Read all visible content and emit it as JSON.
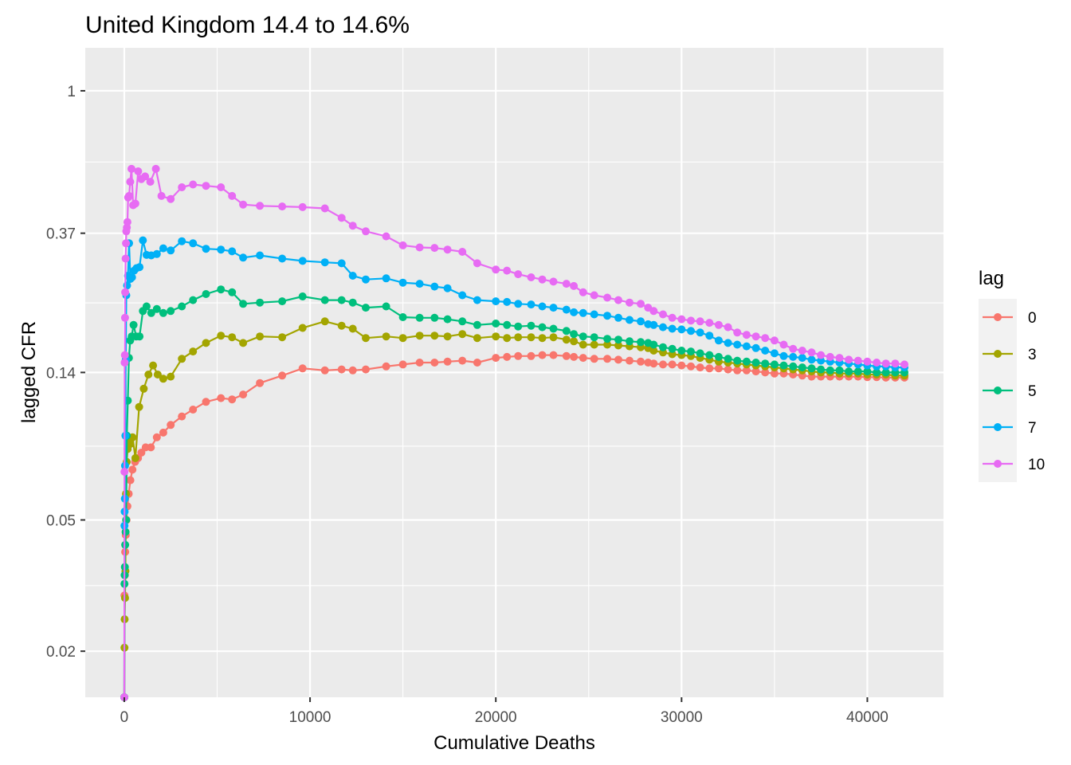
{
  "chart_data": {
    "type": "line",
    "title": "United Kingdom 14.4 to 14.6%",
    "xlabel": "Cumulative Deaths",
    "ylabel": "lagged CFR",
    "y_scale": "log",
    "xlim": [
      -2100,
      44100
    ],
    "ylim": [
      0.0145,
      1.35
    ],
    "x_ticks": [
      0,
      10000,
      20000,
      30000,
      40000
    ],
    "x_tick_labels": [
      "0",
      "10000",
      "20000",
      "30000",
      "40000"
    ],
    "y_ticks": [
      1,
      0.37,
      0.14,
      0.05,
      0.02
    ],
    "y_tick_labels": [
      "1",
      "0.37",
      "0.14",
      "0.05",
      "0.02"
    ],
    "grid": true,
    "legend": {
      "title": "lag",
      "position": "right"
    },
    "series": [
      {
        "name": "0",
        "color": "#F8766D",
        "x": [
          0,
          10,
          30,
          50,
          80,
          120,
          170,
          240,
          330,
          440,
          580,
          740,
          920,
          1150,
          1430,
          1750,
          2100,
          2500,
          3100,
          3700,
          4400,
          5200,
          5800,
          6400,
          7300,
          8500,
          9600,
          10800,
          11700,
          12300,
          13000,
          14100,
          15000,
          15900,
          16700,
          17400,
          18200,
          19000,
          20000,
          20600,
          21200,
          21900,
          22500,
          23100,
          23800,
          24200,
          24700,
          25300,
          26000,
          26600,
          27200,
          27800,
          28200,
          28500,
          29000,
          29500,
          30000,
          30500,
          31000,
          31500,
          32000,
          32500,
          33000,
          33500,
          34000,
          34500,
          35000,
          35500,
          36000,
          36500,
          37000,
          37500,
          38000,
          38500,
          39000,
          39500,
          40000,
          40500,
          41000,
          41500,
          42000
        ],
        "values": [
          0.0145,
          0.0295,
          0.034,
          0.04,
          0.045,
          0.05,
          0.055,
          0.06,
          0.066,
          0.071,
          0.075,
          0.077,
          0.08,
          0.083,
          0.083,
          0.089,
          0.092,
          0.097,
          0.103,
          0.108,
          0.114,
          0.117,
          0.116,
          0.12,
          0.13,
          0.137,
          0.144,
          0.142,
          0.143,
          0.142,
          0.143,
          0.146,
          0.148,
          0.15,
          0.15,
          0.151,
          0.152,
          0.15,
          0.155,
          0.156,
          0.157,
          0.157,
          0.158,
          0.158,
          0.157,
          0.156,
          0.155,
          0.154,
          0.154,
          0.153,
          0.152,
          0.151,
          0.15,
          0.149,
          0.148,
          0.148,
          0.147,
          0.146,
          0.145,
          0.144,
          0.144,
          0.143,
          0.142,
          0.142,
          0.141,
          0.14,
          0.139,
          0.139,
          0.138,
          0.137,
          0.136,
          0.136,
          0.136,
          0.136,
          0.136,
          0.136,
          0.1355,
          0.1355,
          0.135,
          0.135,
          0.135
        ]
      },
      {
        "name": "3",
        "color": "#A3A500",
        "x": [
          0,
          10,
          20,
          40,
          60,
          90,
          130,
          180,
          250,
          330,
          450,
          600,
          800,
          1050,
          1300,
          1550,
          1800,
          2100,
          2500,
          3100,
          3700,
          4400,
          5200,
          5800,
          6400,
          7300,
          8500,
          9600,
          10800,
          11700,
          12300,
          13000,
          14100,
          15000,
          15900,
          16700,
          17400,
          18200,
          19000,
          20000,
          20600,
          21200,
          21900,
          22500,
          23100,
          23800,
          24200,
          24700,
          25300,
          26000,
          26600,
          27200,
          27800,
          28200,
          28500,
          29000,
          29500,
          30000,
          30500,
          31000,
          31500,
          32000,
          32500,
          33000,
          33500,
          34000,
          34500,
          35000,
          35500,
          36000,
          36500,
          37000,
          37500,
          38000,
          38500,
          39000,
          39500,
          40000,
          40500,
          41000,
          41500,
          42000
        ],
        "values": [
          0.0145,
          0.0205,
          0.025,
          0.029,
          0.035,
          0.06,
          0.075,
          0.082,
          0.086,
          0.085,
          0.089,
          0.077,
          0.11,
          0.125,
          0.138,
          0.147,
          0.138,
          0.134,
          0.136,
          0.154,
          0.162,
          0.172,
          0.181,
          0.179,
          0.172,
          0.18,
          0.179,
          0.191,
          0.2,
          0.194,
          0.19,
          0.178,
          0.18,
          0.178,
          0.181,
          0.181,
          0.18,
          0.183,
          0.178,
          0.18,
          0.178,
          0.179,
          0.179,
          0.178,
          0.179,
          0.176,
          0.174,
          0.17,
          0.17,
          0.17,
          0.169,
          0.168,
          0.167,
          0.166,
          0.163,
          0.161,
          0.159,
          0.158,
          0.157,
          0.155,
          0.153,
          0.151,
          0.15,
          0.149,
          0.148,
          0.147,
          0.146,
          0.145,
          0.144,
          0.143,
          0.142,
          0.141,
          0.14,
          0.14,
          0.139,
          0.139,
          0.139,
          0.138,
          0.138,
          0.138,
          0.137,
          0.137
        ]
      },
      {
        "name": "5",
        "color": "#00BF7D",
        "x": [
          0,
          10,
          20,
          30,
          50,
          70,
          100,
          140,
          190,
          250,
          320,
          400,
          500,
          640,
          820,
          1000,
          1200,
          1450,
          1750,
          2100,
          2500,
          3100,
          3700,
          4400,
          5200,
          5800,
          6400,
          7300,
          8500,
          9600,
          10800,
          11700,
          12300,
          13000,
          14100,
          15000,
          15900,
          16700,
          17400,
          18200,
          19000,
          20000,
          20600,
          21200,
          21900,
          22500,
          23100,
          23800,
          24200,
          24700,
          25300,
          26000,
          26600,
          27200,
          27800,
          28200,
          28500,
          29000,
          29500,
          30000,
          30500,
          31000,
          31500,
          32000,
          32500,
          33000,
          33500,
          34000,
          34500,
          35000,
          35500,
          36000,
          36500,
          37000,
          37500,
          38000,
          38500,
          39000,
          39500,
          40000,
          40500,
          41000,
          41500,
          42000
        ],
        "values": [
          0.0145,
          0.032,
          0.034,
          0.036,
          0.042,
          0.046,
          0.05,
          0.09,
          0.115,
          0.155,
          0.175,
          0.18,
          0.195,
          0.18,
          0.18,
          0.215,
          0.222,
          0.212,
          0.218,
          0.212,
          0.215,
          0.222,
          0.232,
          0.242,
          0.25,
          0.245,
          0.226,
          0.228,
          0.23,
          0.238,
          0.232,
          0.232,
          0.228,
          0.22,
          0.222,
          0.206,
          0.205,
          0.205,
          0.203,
          0.2,
          0.195,
          0.197,
          0.195,
          0.193,
          0.194,
          0.192,
          0.19,
          0.187,
          0.183,
          0.18,
          0.179,
          0.177,
          0.176,
          0.174,
          0.173,
          0.172,
          0.17,
          0.167,
          0.165,
          0.163,
          0.162,
          0.16,
          0.158,
          0.156,
          0.154,
          0.152,
          0.151,
          0.15,
          0.149,
          0.148,
          0.147,
          0.146,
          0.145,
          0.144,
          0.143,
          0.142,
          0.142,
          0.141,
          0.141,
          0.141,
          0.14,
          0.14,
          0.14,
          0.14
        ]
      },
      {
        "name": "7",
        "color": "#00B0F6",
        "x": [
          0,
          10,
          20,
          30,
          40,
          60,
          80,
          110,
          150,
          200,
          260,
          330,
          420,
          530,
          660,
          820,
          1000,
          1200,
          1450,
          1750,
          2100,
          2500,
          3100,
          3700,
          4400,
          5200,
          5800,
          6400,
          7300,
          8500,
          9600,
          10800,
          11700,
          12300,
          13000,
          14100,
          15000,
          15900,
          16700,
          17400,
          18200,
          19000,
          20000,
          20600,
          21200,
          21900,
          22500,
          23100,
          23800,
          24200,
          24700,
          25300,
          26000,
          26600,
          27200,
          27800,
          28200,
          28500,
          29000,
          29500,
          30000,
          30500,
          31000,
          31500,
          32000,
          32500,
          33000,
          33500,
          34000,
          34500,
          35000,
          35500,
          36000,
          36500,
          37000,
          37500,
          38000,
          38500,
          39000,
          39500,
          40000,
          40500,
          41000,
          41500,
          42000
        ],
        "values": [
          0.0145,
          0.048,
          0.053,
          0.058,
          0.073,
          0.09,
          0.153,
          0.24,
          0.257,
          0.275,
          0.345,
          0.269,
          0.272,
          0.285,
          0.29,
          0.292,
          0.352,
          0.318,
          0.317,
          0.32,
          0.333,
          0.328,
          0.35,
          0.345,
          0.332,
          0.33,
          0.326,
          0.312,
          0.317,
          0.31,
          0.305,
          0.302,
          0.3,
          0.275,
          0.268,
          0.27,
          0.262,
          0.26,
          0.255,
          0.252,
          0.24,
          0.232,
          0.23,
          0.229,
          0.226,
          0.225,
          0.222,
          0.22,
          0.217,
          0.213,
          0.212,
          0.21,
          0.208,
          0.205,
          0.202,
          0.2,
          0.196,
          0.195,
          0.192,
          0.19,
          0.189,
          0.187,
          0.185,
          0.181,
          0.175,
          0.172,
          0.17,
          0.168,
          0.166,
          0.163,
          0.16,
          0.157,
          0.156,
          0.155,
          0.153,
          0.152,
          0.151,
          0.15,
          0.149,
          0.148,
          0.147,
          0.146,
          0.146,
          0.145,
          0.145
        ]
      },
      {
        "name": "10",
        "color": "#E76BF3",
        "x": [
          0,
          10,
          20,
          30,
          40,
          50,
          70,
          90,
          110,
          140,
          170,
          210,
          260,
          320,
          390,
          480,
          600,
          750,
          920,
          1120,
          1400,
          1700,
          2000,
          2500,
          3100,
          3700,
          4400,
          5200,
          5800,
          6400,
          7300,
          8500,
          9600,
          10800,
          11700,
          12300,
          13000,
          14100,
          15000,
          15900,
          16700,
          17400,
          18200,
          19000,
          20000,
          20600,
          21200,
          21900,
          22500,
          23100,
          23800,
          24200,
          24700,
          25300,
          26000,
          26600,
          27200,
          27800,
          28200,
          28500,
          29000,
          29500,
          30000,
          30500,
          31000,
          31500,
          32000,
          32500,
          33000,
          33500,
          34000,
          34500,
          35000,
          35500,
          36000,
          36500,
          37000,
          37500,
          38000,
          38500,
          39000,
          39500,
          40000,
          40500,
          41000,
          41500,
          42000
        ],
        "values": [
          0.0145,
          0.07,
          0.15,
          0.158,
          0.205,
          0.245,
          0.31,
          0.345,
          0.375,
          0.385,
          0.4,
          0.475,
          0.48,
          0.53,
          0.58,
          0.45,
          0.455,
          0.57,
          0.54,
          0.55,
          0.53,
          0.58,
          0.48,
          0.47,
          0.51,
          0.52,
          0.515,
          0.51,
          0.48,
          0.452,
          0.448,
          0.446,
          0.444,
          0.44,
          0.412,
          0.39,
          0.375,
          0.362,
          0.34,
          0.335,
          0.334,
          0.33,
          0.325,
          0.3,
          0.287,
          0.285,
          0.278,
          0.272,
          0.268,
          0.264,
          0.26,
          0.256,
          0.245,
          0.24,
          0.236,
          0.232,
          0.228,
          0.226,
          0.22,
          0.215,
          0.21,
          0.205,
          0.203,
          0.201,
          0.2,
          0.198,
          0.195,
          0.192,
          0.185,
          0.182,
          0.18,
          0.178,
          0.175,
          0.17,
          0.165,
          0.163,
          0.161,
          0.158,
          0.156,
          0.155,
          0.153,
          0.152,
          0.151,
          0.15,
          0.149,
          0.149,
          0.148
        ]
      }
    ]
  }
}
